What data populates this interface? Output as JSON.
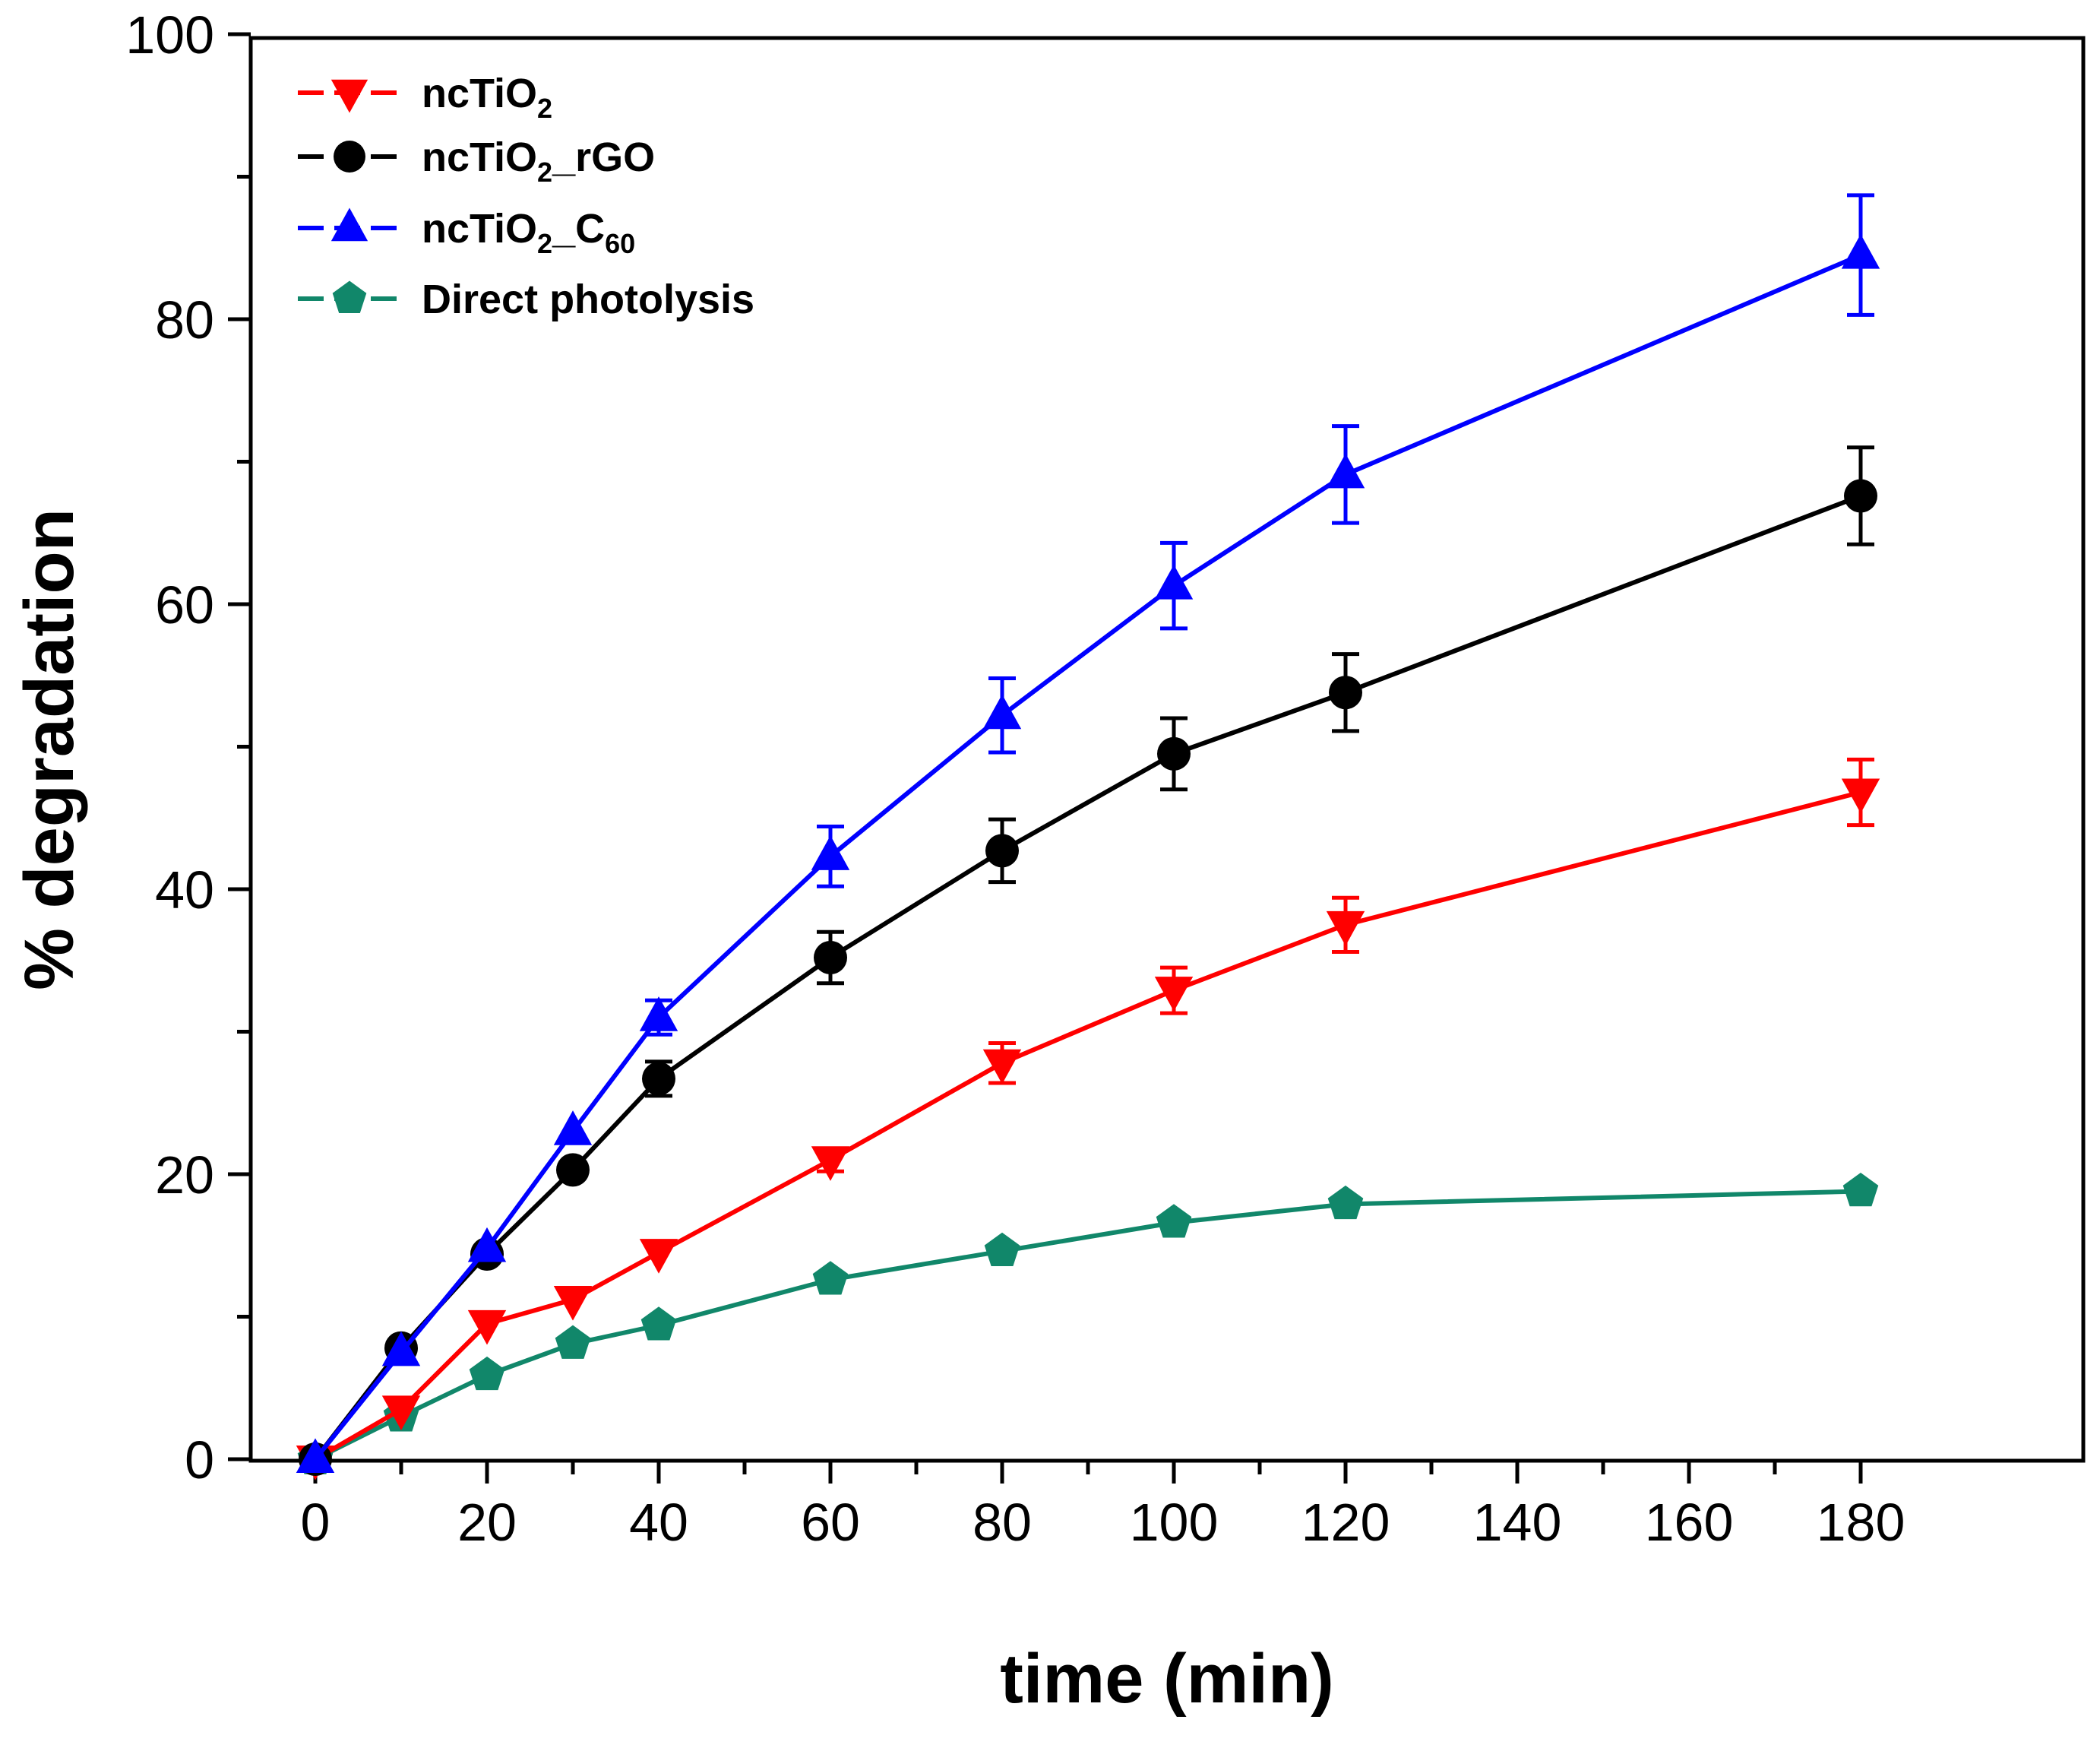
{
  "chart_data": {
    "type": "line",
    "xlabel": "time (min)",
    "ylabel": "% degradation",
    "xlim": [
      -8,
      185
    ],
    "ylim": [
      -5,
      100
    ],
    "x_ticks": [
      0,
      20,
      40,
      60,
      80,
      100,
      120,
      140,
      160,
      180
    ],
    "y_ticks": [
      0,
      20,
      40,
      60,
      80,
      100
    ],
    "x_minor_step": 10,
    "y_minor_step": 10,
    "grid": false,
    "legend_position": "top-left",
    "series": [
      {
        "name": "ncTiO2",
        "legend": {
          "base": "ncTiO",
          "sub": "2",
          "mid": "",
          "sub2": ""
        },
        "color": "#ff0000",
        "marker": "triangle-down",
        "x": [
          0,
          10,
          20,
          30,
          40,
          60,
          80,
          100,
          120,
          180
        ],
        "y": [
          0,
          3.5,
          9.5,
          11.2,
          14.5,
          21.0,
          27.8,
          32.9,
          37.5,
          46.8
        ],
        "err": [
          0,
          0,
          0,
          0,
          0,
          0.8,
          1.4,
          1.6,
          1.9,
          2.3
        ]
      },
      {
        "name": "ncTiO2_rGO",
        "legend": {
          "base": "ncTiO",
          "sub": "2",
          "mid": "_rGO",
          "sub2": ""
        },
        "color": "#000000",
        "marker": "circle",
        "x": [
          0,
          10,
          20,
          30,
          40,
          60,
          80,
          100,
          120,
          180
        ],
        "y": [
          0,
          7.8,
          14.4,
          20.3,
          26.7,
          35.2,
          42.7,
          49.5,
          53.8,
          67.6
        ],
        "err": [
          0,
          0,
          0,
          0,
          1.2,
          1.8,
          2.2,
          2.5,
          2.7,
          3.4
        ]
      },
      {
        "name": "ncTiO2_C60",
        "legend": {
          "base": "ncTiO",
          "sub": "2",
          "mid": "_C",
          "sub2": "60"
        },
        "color": "#0000ff",
        "marker": "triangle-up",
        "x": [
          0,
          10,
          20,
          30,
          40,
          60,
          80,
          100,
          120,
          180
        ],
        "y": [
          0,
          7.5,
          14.8,
          23.0,
          31.0,
          42.3,
          52.2,
          61.3,
          69.1,
          84.5
        ],
        "err": [
          0,
          0,
          0,
          0,
          1.2,
          2.1,
          2.6,
          3.0,
          3.4,
          4.2
        ]
      },
      {
        "name": "Direct photolysis",
        "legend": {
          "base": "Direct photolysis",
          "sub": "",
          "mid": "",
          "sub2": ""
        },
        "color": "#11876a",
        "marker": "pentagon",
        "x": [
          0,
          10,
          20,
          30,
          40,
          60,
          80,
          100,
          120,
          180
        ],
        "y": [
          0,
          3.0,
          5.9,
          8.1,
          9.4,
          12.6,
          14.6,
          16.6,
          17.9,
          18.8
        ],
        "err": [
          0,
          0,
          0,
          0,
          0,
          0,
          0,
          0,
          0,
          0
        ]
      }
    ]
  }
}
